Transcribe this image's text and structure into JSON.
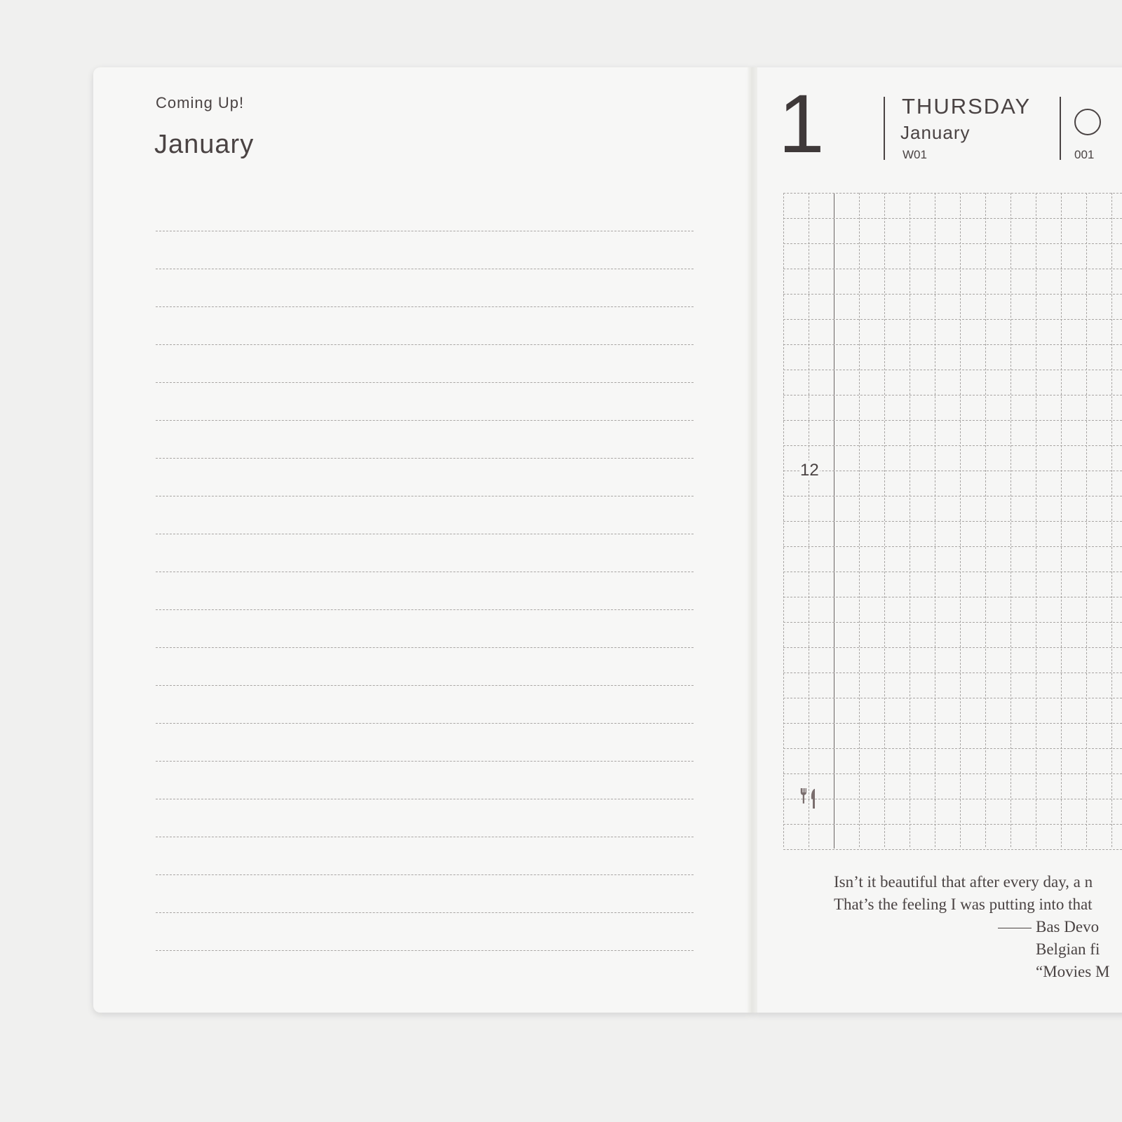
{
  "left_page": {
    "heading": "Coming Up!",
    "month": "January",
    "ruled_line_count": 20
  },
  "right_page": {
    "day_number": "1",
    "weekday": "THURSDAY",
    "month": "January",
    "week": "W01",
    "moon_icon": "moon-phase-icon",
    "day_of_year": "001",
    "hour_label": "12",
    "meal_icon": "fork-knife-icon",
    "quote_lines": [
      "Isn’t it beautiful that after every day, a n",
      "That’s the feeling I was putting into that"
    ],
    "attribution_lines": [
      "Bas Devo",
      "Belgian fi",
      "“Movies M"
    ]
  },
  "colors": {
    "ink": "#4a4343",
    "paper": "#f7f7f6",
    "grid": "#a9a6a4",
    "icon": "#7a6e6e"
  }
}
